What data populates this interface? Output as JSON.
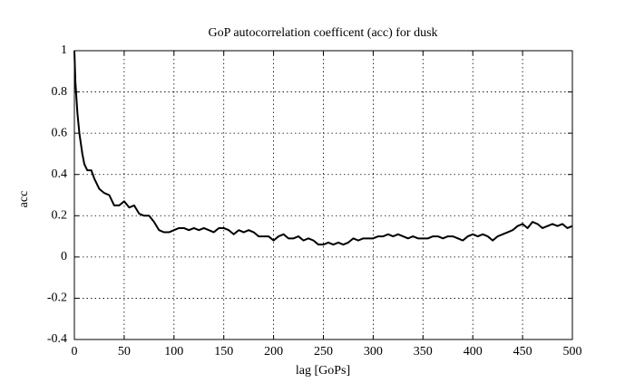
{
  "chart_data": {
    "type": "line",
    "title": "GoP autocorrelation coefficent (acc) for dusk",
    "xlabel": "lag [GoPs]",
    "ylabel": "acc",
    "x": [
      0,
      1,
      3,
      5,
      8,
      10,
      13,
      17,
      20,
      25,
      30,
      35,
      40,
      45,
      50,
      55,
      60,
      65,
      70,
      75,
      80,
      85,
      90,
      95,
      100,
      105,
      110,
      115,
      120,
      125,
      130,
      135,
      140,
      145,
      150,
      155,
      160,
      165,
      170,
      175,
      180,
      185,
      190,
      195,
      200,
      205,
      210,
      215,
      220,
      225,
      230,
      235,
      240,
      245,
      250,
      255,
      260,
      265,
      270,
      275,
      280,
      285,
      290,
      295,
      300,
      305,
      310,
      315,
      320,
      325,
      330,
      335,
      340,
      345,
      350,
      355,
      360,
      365,
      370,
      375,
      380,
      385,
      390,
      395,
      400,
      405,
      410,
      415,
      420,
      425,
      430,
      435,
      440,
      445,
      450,
      455,
      460,
      465,
      470,
      475,
      480,
      485,
      490,
      495,
      500
    ],
    "series": [
      {
        "color": "#000000",
        "values": [
          1.0,
          0.85,
          0.7,
          0.6,
          0.5,
          0.45,
          0.42,
          0.42,
          0.38,
          0.33,
          0.31,
          0.3,
          0.25,
          0.25,
          0.27,
          0.24,
          0.25,
          0.21,
          0.2,
          0.2,
          0.17,
          0.13,
          0.12,
          0.12,
          0.13,
          0.14,
          0.14,
          0.13,
          0.14,
          0.13,
          0.14,
          0.13,
          0.12,
          0.14,
          0.14,
          0.13,
          0.11,
          0.13,
          0.12,
          0.13,
          0.12,
          0.1,
          0.1,
          0.1,
          0.08,
          0.1,
          0.11,
          0.09,
          0.09,
          0.1,
          0.08,
          0.09,
          0.08,
          0.06,
          0.06,
          0.07,
          0.06,
          0.07,
          0.06,
          0.07,
          0.09,
          0.08,
          0.09,
          0.09,
          0.09,
          0.1,
          0.1,
          0.11,
          0.1,
          0.11,
          0.1,
          0.09,
          0.1,
          0.09,
          0.09,
          0.09,
          0.1,
          0.1,
          0.09,
          0.1,
          0.1,
          0.09,
          0.08,
          0.1,
          0.11,
          0.1,
          0.11,
          0.1,
          0.08,
          0.1,
          0.11,
          0.12,
          0.13,
          0.15,
          0.16,
          0.14,
          0.17,
          0.16,
          0.14,
          0.15,
          0.16,
          0.15,
          0.16,
          0.14,
          0.15
        ]
      }
    ],
    "xlim": [
      0,
      500
    ],
    "xticks": [
      0,
      50,
      100,
      150,
      200,
      250,
      300,
      350,
      400,
      450,
      500
    ],
    "ylim": [
      -0.4,
      1
    ],
    "yticks": [
      -0.4,
      -0.2,
      0,
      0.2,
      0.4,
      0.6,
      0.8,
      1
    ],
    "grid": true
  }
}
